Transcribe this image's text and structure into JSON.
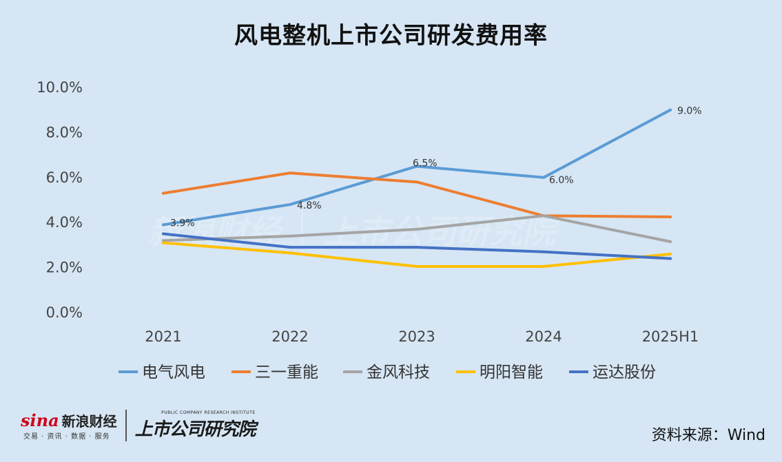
{
  "chart_data": {
    "type": "line",
    "title": "风电整机上市公司研发费用率",
    "categories": [
      "2021",
      "2022",
      "2023",
      "2024",
      "2025H1"
    ],
    "y_ticks": [
      "0.0%",
      "2.0%",
      "4.0%",
      "6.0%",
      "8.0%",
      "10.0%"
    ],
    "ylim": [
      0,
      10
    ],
    "grid": false,
    "legend_position": "bottom",
    "series": [
      {
        "name": "电气风电",
        "color": "#5b9bd5",
        "values": [
          3.9,
          4.8,
          6.5,
          6.0,
          9.0
        ],
        "labels": [
          "3.9%",
          "4.8%",
          "6.5%",
          "6.0%",
          "9.0%"
        ]
      },
      {
        "name": "三一重能",
        "color": "#ed7d31",
        "values": [
          5.3,
          6.2,
          5.8,
          4.3,
          4.25
        ]
      },
      {
        "name": "金风科技",
        "color": "#a5a5a5",
        "values": [
          3.2,
          3.4,
          3.7,
          4.3,
          3.15
        ]
      },
      {
        "name": "明阳智能",
        "color": "#ffc000",
        "values": [
          3.1,
          2.65,
          2.05,
          2.05,
          2.6
        ]
      },
      {
        "name": "运达股份",
        "color": "#4472c4",
        "values": [
          3.5,
          2.9,
          2.9,
          2.7,
          2.4
        ]
      }
    ]
  },
  "footer": {
    "sina_word": "sina",
    "sina_cn": "新浪财经",
    "sina_sub": "交易 · 资讯 · 数据 · 服务",
    "institute_en": "PUBLIC COMPANY RESEARCH INSTITUTE",
    "institute_cn": "上市公司研究院",
    "source": "资料来源：Wind"
  }
}
